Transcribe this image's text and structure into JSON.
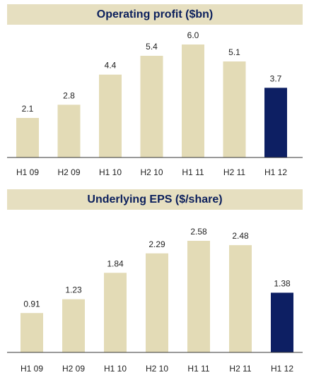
{
  "colors": {
    "header_bg": "#e6dfc0",
    "bar_default": "#e3dbb6",
    "bar_highlight": "#0d1f63",
    "title_text": "#0b1f5c"
  },
  "chart_data": [
    {
      "type": "bar",
      "title": "Operating profit ($bn)",
      "categories": [
        "H1 09",
        "H2 09",
        "H1 10",
        "H2 10",
        "H1 11",
        "H2 11",
        "H1 12"
      ],
      "values": [
        2.1,
        2.8,
        4.4,
        5.4,
        6.0,
        5.1,
        3.7
      ],
      "value_labels": [
        "2.1",
        "2.8",
        "4.4",
        "5.4",
        "6.0",
        "5.1",
        "3.7"
      ],
      "highlight_index": 6,
      "ylim": [
        0,
        6.0
      ],
      "grid": false,
      "xlabel": "",
      "ylabel": ""
    },
    {
      "type": "bar",
      "title": "Underlying EPS ($/share)",
      "categories": [
        "H1 09",
        "H2 09",
        "H1 10",
        "H2 10",
        "H1 11",
        "H2 11",
        "H1 12"
      ],
      "values": [
        0.91,
        1.23,
        1.84,
        2.29,
        2.58,
        2.48,
        1.38
      ],
      "value_labels": [
        "0.91",
        "1.23",
        "1.84",
        "2.29",
        "2.58",
        "2.48",
        "1.38"
      ],
      "highlight_index": 6,
      "ylim": [
        0,
        2.58
      ],
      "grid": false,
      "xlabel": "",
      "ylabel": ""
    }
  ]
}
